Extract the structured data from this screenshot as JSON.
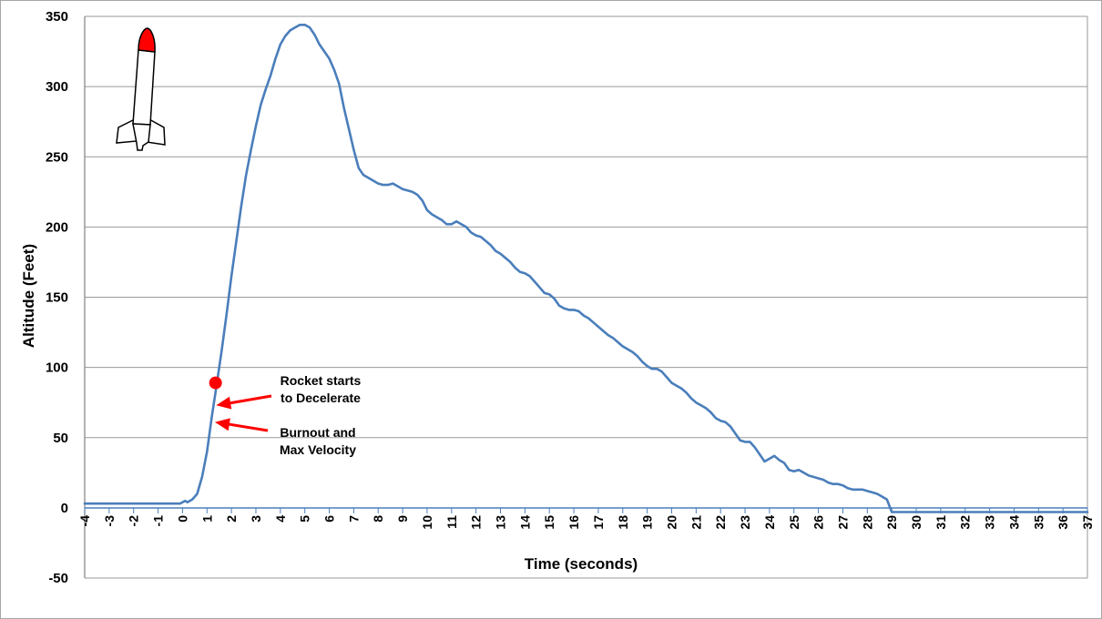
{
  "chart_data": {
    "type": "line",
    "title": "",
    "xlabel": "Time (seconds)",
    "ylabel": "Altitude (Feet)",
    "xlim": [
      -4,
      37
    ],
    "ylim": [
      -50,
      350
    ],
    "x_ticks": [
      "-4",
      "-3",
      "-2",
      "-1",
      "0",
      "1",
      "2",
      "3",
      "4",
      "5",
      "6",
      "7",
      "8",
      "9",
      "10",
      "11",
      "12",
      "13",
      "14",
      "15",
      "16",
      "17",
      "18",
      "19",
      "20",
      "21",
      "22",
      "23",
      "24",
      "25",
      "26",
      "27",
      "28",
      "29",
      "30",
      "31",
      "32",
      "33",
      "34",
      "35",
      "36",
      "37"
    ],
    "y_ticks": [
      "350",
      "300",
      "250",
      "200",
      "150",
      "100",
      "50",
      "0",
      "-50"
    ],
    "grid": "horizontal",
    "line_color": "#4a7ebb",
    "series": [
      {
        "points": [
          [
            -4,
            3
          ],
          [
            -0.1,
            3
          ],
          [
            0.1,
            5
          ],
          [
            0.2,
            4
          ],
          [
            0.4,
            6
          ],
          [
            0.6,
            10
          ],
          [
            0.8,
            22
          ],
          [
            1.0,
            40
          ],
          [
            1.2,
            65
          ],
          [
            1.4,
            88
          ],
          [
            1.6,
            112
          ],
          [
            1.8,
            138
          ],
          [
            2.0,
            165
          ],
          [
            2.2,
            190
          ],
          [
            2.4,
            215
          ],
          [
            2.6,
            237
          ],
          [
            2.8,
            255
          ],
          [
            3.0,
            272
          ],
          [
            3.2,
            287
          ],
          [
            3.4,
            298
          ],
          [
            3.6,
            308
          ],
          [
            3.8,
            320
          ],
          [
            4.0,
            330
          ],
          [
            4.2,
            336
          ],
          [
            4.4,
            340
          ],
          [
            4.6,
            342
          ],
          [
            4.8,
            344
          ],
          [
            5.0,
            344
          ],
          [
            5.2,
            342
          ],
          [
            5.4,
            337
          ],
          [
            5.6,
            330
          ],
          [
            5.8,
            325
          ],
          [
            6.0,
            320
          ],
          [
            6.2,
            312
          ],
          [
            6.4,
            302
          ],
          [
            6.6,
            285
          ],
          [
            6.8,
            270
          ],
          [
            7.0,
            255
          ],
          [
            7.2,
            242
          ],
          [
            7.4,
            237
          ],
          [
            7.6,
            235
          ],
          [
            7.8,
            233
          ],
          [
            8.0,
            231
          ],
          [
            8.2,
            230
          ],
          [
            8.4,
            230
          ],
          [
            8.6,
            231
          ],
          [
            8.8,
            229
          ],
          [
            9.0,
            227
          ],
          [
            9.2,
            226
          ],
          [
            9.4,
            225
          ],
          [
            9.6,
            223
          ],
          [
            9.8,
            219
          ],
          [
            10.0,
            212
          ],
          [
            10.2,
            209
          ],
          [
            10.4,
            207
          ],
          [
            10.6,
            205
          ],
          [
            10.8,
            202
          ],
          [
            11.0,
            202
          ],
          [
            11.2,
            204
          ],
          [
            11.4,
            202
          ],
          [
            11.6,
            200
          ],
          [
            11.8,
            196
          ],
          [
            12.0,
            194
          ],
          [
            12.2,
            193
          ],
          [
            12.4,
            190
          ],
          [
            12.6,
            187
          ],
          [
            12.8,
            183
          ],
          [
            13.0,
            181
          ],
          [
            13.2,
            178
          ],
          [
            13.4,
            175
          ],
          [
            13.6,
            171
          ],
          [
            13.8,
            168
          ],
          [
            14.0,
            167
          ],
          [
            14.2,
            165
          ],
          [
            14.4,
            161
          ],
          [
            14.6,
            157
          ],
          [
            14.8,
            153
          ],
          [
            15.0,
            152
          ],
          [
            15.2,
            149
          ],
          [
            15.4,
            144
          ],
          [
            15.6,
            142
          ],
          [
            15.8,
            141
          ],
          [
            16.0,
            141
          ],
          [
            16.2,
            140
          ],
          [
            16.4,
            137
          ],
          [
            16.6,
            135
          ],
          [
            16.8,
            132
          ],
          [
            17.0,
            129
          ],
          [
            17.2,
            126
          ],
          [
            17.4,
            123
          ],
          [
            17.6,
            121
          ],
          [
            17.8,
            118
          ],
          [
            18.0,
            115
          ],
          [
            18.2,
            113
          ],
          [
            18.4,
            111
          ],
          [
            18.6,
            108
          ],
          [
            18.8,
            104
          ],
          [
            19.0,
            101
          ],
          [
            19.2,
            99
          ],
          [
            19.4,
            99
          ],
          [
            19.6,
            97
          ],
          [
            19.8,
            93
          ],
          [
            20.0,
            89
          ],
          [
            20.2,
            87
          ],
          [
            20.4,
            85
          ],
          [
            20.6,
            82
          ],
          [
            20.8,
            78
          ],
          [
            21.0,
            75
          ],
          [
            21.2,
            73
          ],
          [
            21.4,
            71
          ],
          [
            21.6,
            68
          ],
          [
            21.8,
            64
          ],
          [
            22.0,
            62
          ],
          [
            22.2,
            61
          ],
          [
            22.4,
            58
          ],
          [
            22.6,
            53
          ],
          [
            22.8,
            48
          ],
          [
            23.0,
            47
          ],
          [
            23.2,
            47
          ],
          [
            23.4,
            43
          ],
          [
            23.6,
            38
          ],
          [
            23.8,
            33
          ],
          [
            24.0,
            35
          ],
          [
            24.2,
            37
          ],
          [
            24.4,
            34
          ],
          [
            24.6,
            32
          ],
          [
            24.8,
            27
          ],
          [
            25.0,
            26
          ],
          [
            25.2,
            27
          ],
          [
            25.4,
            25
          ],
          [
            25.6,
            23
          ],
          [
            25.8,
            22
          ],
          [
            26.0,
            21
          ],
          [
            26.2,
            20
          ],
          [
            26.4,
            18
          ],
          [
            26.6,
            17
          ],
          [
            26.8,
            17
          ],
          [
            27.0,
            16
          ],
          [
            27.2,
            14
          ],
          [
            27.4,
            13
          ],
          [
            27.6,
            13
          ],
          [
            27.8,
            13
          ],
          [
            28.0,
            12
          ],
          [
            28.2,
            11
          ],
          [
            28.4,
            10
          ],
          [
            28.6,
            8
          ],
          [
            28.8,
            6
          ],
          [
            29.0,
            -3
          ],
          [
            29.3,
            -3
          ],
          [
            37,
            -3
          ]
        ]
      }
    ],
    "marker": {
      "label": "",
      "x": 1.35,
      "y": 89,
      "color": "#ff0000"
    },
    "annotations": [
      {
        "text_lines": [
          "Rocket starts",
          "to Decelerate"
        ],
        "arrow_to": [
          1.3,
          73
        ],
        "arrow_color": "#ff0000"
      },
      {
        "text_lines": [
          "Burnout and",
          "Max Velocity"
        ],
        "arrow_to": [
          1.25,
          61
        ],
        "arrow_color": "#ff0000"
      }
    ],
    "icon": "rocket-icon",
    "icon_colors": {
      "nose": "#ff0000",
      "body": "#ffffff",
      "outline": "#000000"
    }
  }
}
